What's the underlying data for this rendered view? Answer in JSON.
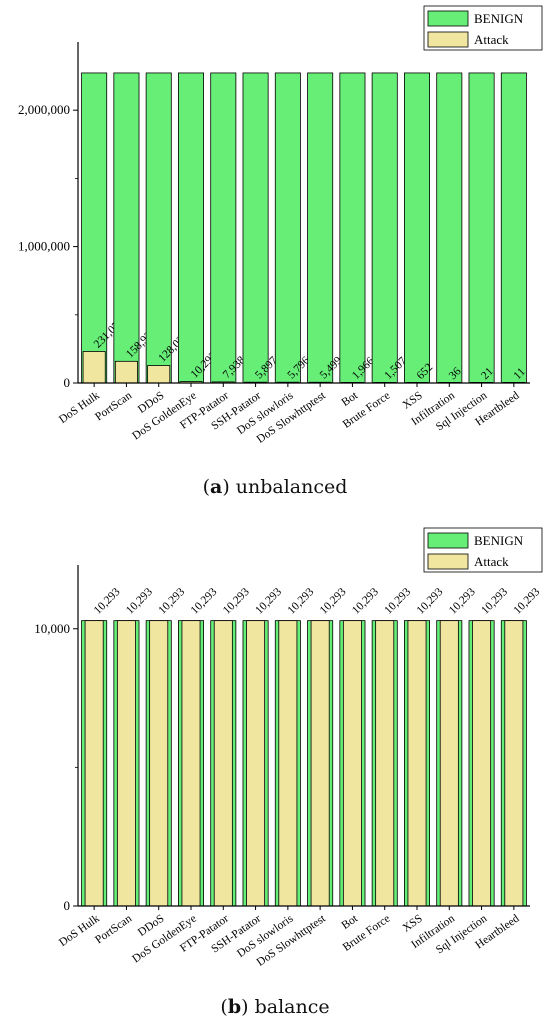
{
  "colors": {
    "benign": "#66ee77",
    "attack": "#f0e6a0",
    "stroke": "#000000"
  },
  "chart_data": [
    {
      "type": "bar",
      "caption_letter": "a",
      "caption_text": ") unbalanced",
      "caption_open": "(",
      "categories": [
        "DoS Hulk",
        "PortScan",
        "DDoS",
        "DoS GoldenEye",
        "FTP-Patator",
        "SSH-Patator",
        "DoS slowloris",
        "DoS Slowhttptest",
        "Bot",
        "Brute Force",
        "XSS",
        "Infiltration",
        "Sql Injection",
        "Heartbleed"
      ],
      "series": [
        {
          "name": "BENIGN",
          "values": [
            2273097,
            2273097,
            2273097,
            2273097,
            2273097,
            2273097,
            2273097,
            2273097,
            2273097,
            2273097,
            2273097,
            2273097,
            2273097,
            2273097
          ]
        },
        {
          "name": "Attack",
          "values": [
            231073,
            158930,
            128027,
            10293,
            7938,
            5897,
            5796,
            5499,
            1966,
            1507,
            652,
            36,
            21,
            11
          ],
          "labels": [
            "231,073",
            "158,930",
            "128,027",
            "10,293",
            "7,938",
            "5,897",
            "5,796",
            "5,499",
            "1,966",
            "1,507",
            "652",
            "36",
            "21",
            "11"
          ]
        }
      ],
      "yticks": [
        0,
        1000000,
        2000000
      ],
      "ytick_labels": [
        "0",
        "1,000,000",
        "2,000,000"
      ],
      "ylim": [
        0,
        2500000
      ],
      "legend": "top-right"
    },
    {
      "type": "bar",
      "caption_letter": "b",
      "caption_text": ") balance",
      "caption_open": "(",
      "categories": [
        "DoS Hulk",
        "PortScan",
        "DDoS",
        "DoS GoldenEye",
        "FTP-Patator",
        "SSH-Patator",
        "DoS slowloris",
        "DoS Slowhttptest",
        "Bot",
        "Brute Force",
        "XSS",
        "Infiltration",
        "Sql Injection",
        "Heartbleed"
      ],
      "series": [
        {
          "name": "BENIGN",
          "values": [
            10293,
            10293,
            10293,
            10293,
            10293,
            10293,
            10293,
            10293,
            10293,
            10293,
            10293,
            10293,
            10293,
            10293
          ]
        },
        {
          "name": "Attack",
          "values": [
            10293,
            10293,
            10293,
            10293,
            10293,
            10293,
            10293,
            10293,
            10293,
            10293,
            10293,
            10293,
            10293,
            10293
          ],
          "labels": [
            "10,293",
            "10,293",
            "10,293",
            "10,293",
            "10,293",
            "10,293",
            "10,293",
            "10,293",
            "10,293",
            "10,293",
            "10,293",
            "10,293",
            "10,293",
            "10,293"
          ]
        }
      ],
      "yticks": [
        0,
        10000
      ],
      "ytick_labels": [
        "0",
        "10,000"
      ],
      "ylim": [
        0,
        12300
      ],
      "legend": "top-right"
    }
  ]
}
